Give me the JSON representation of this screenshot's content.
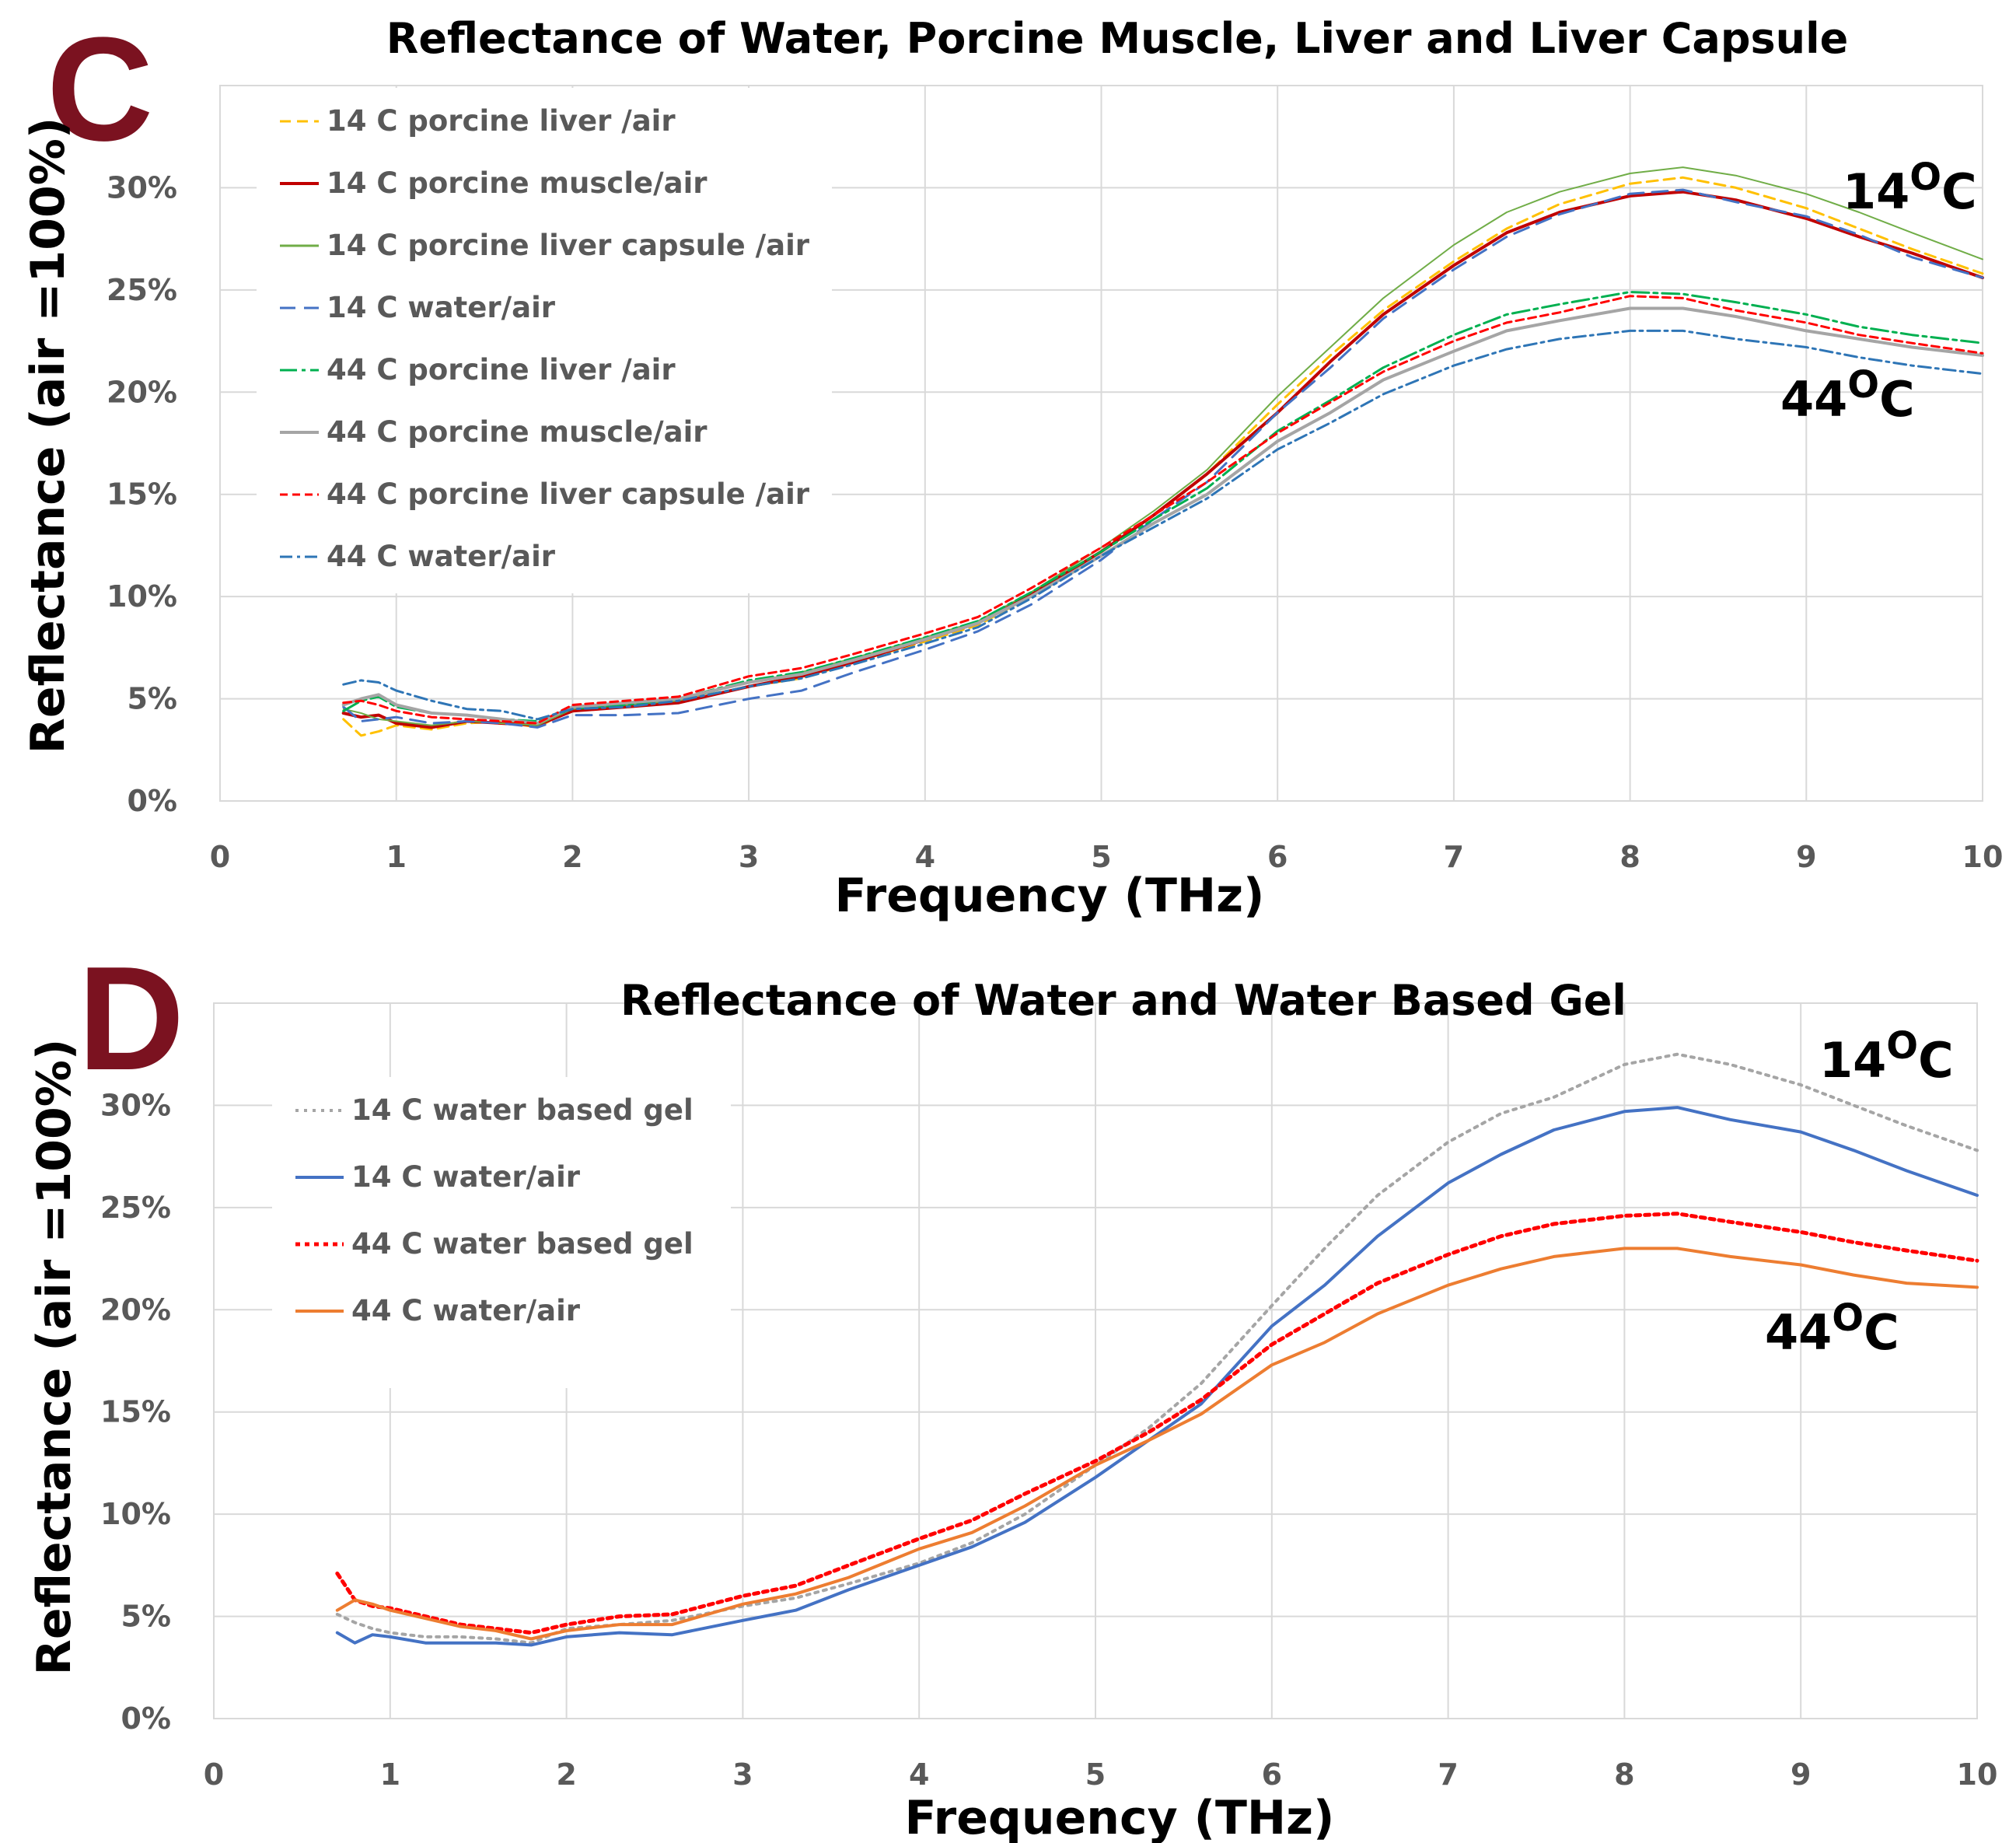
{
  "chart_data": [
    {
      "panel_label": "C",
      "type": "line",
      "title": "Reflectance of Water, Porcine Muscle, Liver and Liver Capsule",
      "xlabel": "Frequency (THz)",
      "ylabel": "Reflectance (air =100%)",
      "xlim": [
        0,
        10
      ],
      "ylim": [
        0,
        35
      ],
      "xticks": [
        "0",
        "1",
        "2",
        "3",
        "4",
        "5",
        "6",
        "7",
        "8",
        "9",
        "10"
      ],
      "yticks": [
        "0%",
        "5%",
        "10%",
        "15%",
        "20%",
        "25%",
        "30%"
      ],
      "annotations": {
        "hot": {
          "base": "44",
          "sup": "O",
          "unit": "C"
        },
        "cold": {
          "base": "14",
          "sup": "O",
          "unit": "C"
        }
      },
      "x": [
        0.7,
        0.8,
        0.9,
        1.0,
        1.2,
        1.4,
        1.6,
        1.8,
        2.0,
        2.3,
        2.6,
        3.0,
        3.3,
        3.6,
        4.0,
        4.3,
        4.6,
        5.0,
        5.3,
        5.6,
        6.0,
        6.3,
        6.6,
        7.0,
        7.3,
        7.6,
        8.0,
        8.3,
        8.6,
        9.0,
        9.3,
        9.6,
        10.0
      ],
      "series": [
        {
          "name": "14 C porcine liver /air",
          "color": "#ffc000",
          "dash": "14 8",
          "width": 3,
          "values": [
            4.0,
            3.2,
            3.4,
            3.7,
            3.5,
            3.8,
            3.9,
            3.6,
            4.5,
            4.7,
            4.8,
            5.6,
            6.0,
            6.8,
            7.8,
            8.6,
            10.0,
            12.2,
            14.0,
            16.0,
            19.4,
            21.8,
            24.0,
            26.4,
            28.0,
            29.2,
            30.2,
            30.5,
            30.0,
            29.0,
            28.0,
            27.0,
            25.8
          ]
        },
        {
          "name": "14 C porcine muscle/air",
          "color": "#c00000",
          "dash": "",
          "width": 4,
          "values": [
            4.3,
            4.1,
            4.2,
            3.8,
            3.6,
            3.9,
            3.8,
            3.7,
            4.4,
            4.6,
            4.8,
            5.6,
            6.1,
            6.8,
            7.9,
            8.7,
            10.1,
            12.2,
            14.0,
            16.0,
            19.0,
            21.5,
            23.8,
            26.2,
            27.8,
            28.8,
            29.6,
            29.8,
            29.4,
            28.5,
            27.6,
            26.8,
            25.6
          ]
        },
        {
          "name": "14 C porcine liver capsule /air",
          "color": "#70ad47",
          "dash": "",
          "width": 2,
          "values": [
            4.5,
            4.3,
            4.0,
            3.9,
            3.7,
            3.9,
            3.8,
            3.7,
            4.5,
            4.7,
            4.9,
            5.8,
            6.3,
            7.0,
            8.0,
            8.8,
            10.2,
            12.4,
            14.2,
            16.2,
            19.8,
            22.2,
            24.6,
            27.2,
            28.8,
            29.8,
            30.7,
            31.0,
            30.6,
            29.7,
            28.8,
            27.8,
            26.5
          ]
        },
        {
          "name": "14 C water/air",
          "color": "#4472c4",
          "dash": "20 11",
          "width": 3,
          "values": [
            4.6,
            3.9,
            4.0,
            4.1,
            3.8,
            3.9,
            3.8,
            3.6,
            4.2,
            4.2,
            4.3,
            5.0,
            5.4,
            6.3,
            7.4,
            8.3,
            9.6,
            11.8,
            13.8,
            15.6,
            19.0,
            21.2,
            23.6,
            26.0,
            27.6,
            28.7,
            29.7,
            29.9,
            29.3,
            28.6,
            27.7,
            26.6,
            25.6
          ]
        },
        {
          "name": "44 C porcine liver /air",
          "color": "#00b050",
          "dash": "22 6 5 6",
          "width": 3,
          "values": [
            4.4,
            4.9,
            5.1,
            4.6,
            4.3,
            4.2,
            4.0,
            3.9,
            4.5,
            4.7,
            5.0,
            5.9,
            6.3,
            7.0,
            8.0,
            8.8,
            10.2,
            12.2,
            13.8,
            15.3,
            18.1,
            19.6,
            21.2,
            22.8,
            23.8,
            24.3,
            24.9,
            24.8,
            24.4,
            23.8,
            23.2,
            22.8,
            22.4
          ]
        },
        {
          "name": "44 C porcine muscle/air",
          "color": "#a5a5a5",
          "dash": "",
          "width": 4,
          "values": [
            4.7,
            5.0,
            5.2,
            4.7,
            4.3,
            4.2,
            4.0,
            3.8,
            4.6,
            4.8,
            5.0,
            5.8,
            6.2,
            6.9,
            7.9,
            8.7,
            10.0,
            12.0,
            13.6,
            15.0,
            17.6,
            19.0,
            20.6,
            22.0,
            23.0,
            23.5,
            24.1,
            24.1,
            23.7,
            23.0,
            22.6,
            22.2,
            21.8
          ]
        },
        {
          "name": "44 C porcine liver capsule /air",
          "color": "#ff0000",
          "dash": "10 6",
          "width": 3,
          "values": [
            4.8,
            4.9,
            4.7,
            4.4,
            4.1,
            4.0,
            3.9,
            3.8,
            4.7,
            4.9,
            5.1,
            6.1,
            6.5,
            7.2,
            8.2,
            9.0,
            10.4,
            12.4,
            14.0,
            15.6,
            18.0,
            19.5,
            21.0,
            22.5,
            23.4,
            23.9,
            24.7,
            24.6,
            24.0,
            23.4,
            22.8,
            22.4,
            21.9
          ]
        },
        {
          "name": "44 C water/air",
          "color": "#2e75b6",
          "dash": "16 6 4 6",
          "width": 3,
          "values": [
            5.7,
            5.9,
            5.8,
            5.4,
            4.9,
            4.5,
            4.4,
            4.0,
            4.5,
            4.6,
            4.9,
            5.6,
            6.0,
            6.7,
            7.7,
            8.5,
            9.9,
            12.0,
            13.4,
            14.8,
            17.2,
            18.5,
            19.9,
            21.3,
            22.1,
            22.6,
            23.0,
            23.0,
            22.6,
            22.2,
            21.7,
            21.3,
            20.9
          ]
        }
      ]
    },
    {
      "panel_label": "D",
      "type": "line",
      "title": "Reflectance of Water and Water Based Gel",
      "xlabel": "Frequency (THz)",
      "ylabel": "Reflectance (air =100%)",
      "xlim": [
        0,
        10
      ],
      "ylim": [
        0,
        35
      ],
      "xticks": [
        "0",
        "1",
        "2",
        "3",
        "4",
        "5",
        "6",
        "7",
        "8",
        "9",
        "10"
      ],
      "yticks": [
        "0%",
        "5%",
        "10%",
        "15%",
        "20%",
        "25%",
        "30%"
      ],
      "annotations": {
        "hot": {
          "base": "44",
          "sup": "O",
          "unit": "C"
        },
        "cold": {
          "base": "14",
          "sup": "O",
          "unit": "C"
        }
      },
      "x": [
        0.7,
        0.8,
        0.9,
        1.0,
        1.2,
        1.4,
        1.6,
        1.8,
        2.0,
        2.3,
        2.6,
        3.0,
        3.3,
        3.6,
        4.0,
        4.3,
        4.6,
        5.0,
        5.3,
        5.6,
        6.0,
        6.3,
        6.6,
        7.0,
        7.3,
        7.6,
        8.0,
        8.3,
        8.6,
        9.0,
        9.3,
        9.6,
        10.0
      ],
      "series": [
        {
          "name": "14 C water based gel",
          "color": "#a5a5a5",
          "dash": "4 7",
          "width": 4,
          "values": [
            5.1,
            4.7,
            4.4,
            4.2,
            4.0,
            4.0,
            3.9,
            3.7,
            4.4,
            4.6,
            4.8,
            5.5,
            5.9,
            6.6,
            7.6,
            8.6,
            10.0,
            12.4,
            14.2,
            16.4,
            20.2,
            23.0,
            25.6,
            28.2,
            29.6,
            30.4,
            32.0,
            32.5,
            32.0,
            31.0,
            30.0,
            29.0,
            27.8
          ]
        },
        {
          "name": "14 C water/air",
          "color": "#4472c4",
          "dash": "",
          "width": 4,
          "values": [
            4.2,
            3.7,
            4.1,
            4.0,
            3.7,
            3.7,
            3.7,
            3.6,
            4.0,
            4.2,
            4.1,
            4.8,
            5.3,
            6.3,
            7.5,
            8.4,
            9.6,
            11.8,
            13.6,
            15.4,
            19.2,
            21.2,
            23.6,
            26.2,
            27.6,
            28.8,
            29.7,
            29.9,
            29.3,
            28.7,
            27.8,
            26.8,
            25.6
          ]
        },
        {
          "name": "44 C water based gel",
          "color": "#ff0000",
          "dash": "6 6",
          "width": 5,
          "values": [
            7.1,
            5.8,
            5.5,
            5.4,
            5.0,
            4.6,
            4.4,
            4.2,
            4.6,
            5.0,
            5.1,
            6.0,
            6.5,
            7.5,
            8.8,
            9.7,
            11.0,
            12.6,
            14.0,
            15.6,
            18.3,
            19.8,
            21.3,
            22.7,
            23.6,
            24.2,
            24.6,
            24.7,
            24.3,
            23.8,
            23.3,
            22.9,
            22.4
          ]
        },
        {
          "name": "44 C water/air",
          "color": "#ed7d31",
          "dash": "",
          "width": 4,
          "values": [
            5.3,
            5.8,
            5.6,
            5.3,
            4.9,
            4.5,
            4.3,
            3.9,
            4.3,
            4.6,
            4.6,
            5.6,
            6.1,
            6.9,
            8.3,
            9.1,
            10.4,
            12.4,
            13.6,
            14.9,
            17.3,
            18.4,
            19.8,
            21.2,
            22.0,
            22.6,
            23.0,
            23.0,
            22.6,
            22.2,
            21.7,
            21.3,
            21.1
          ]
        }
      ]
    }
  ]
}
